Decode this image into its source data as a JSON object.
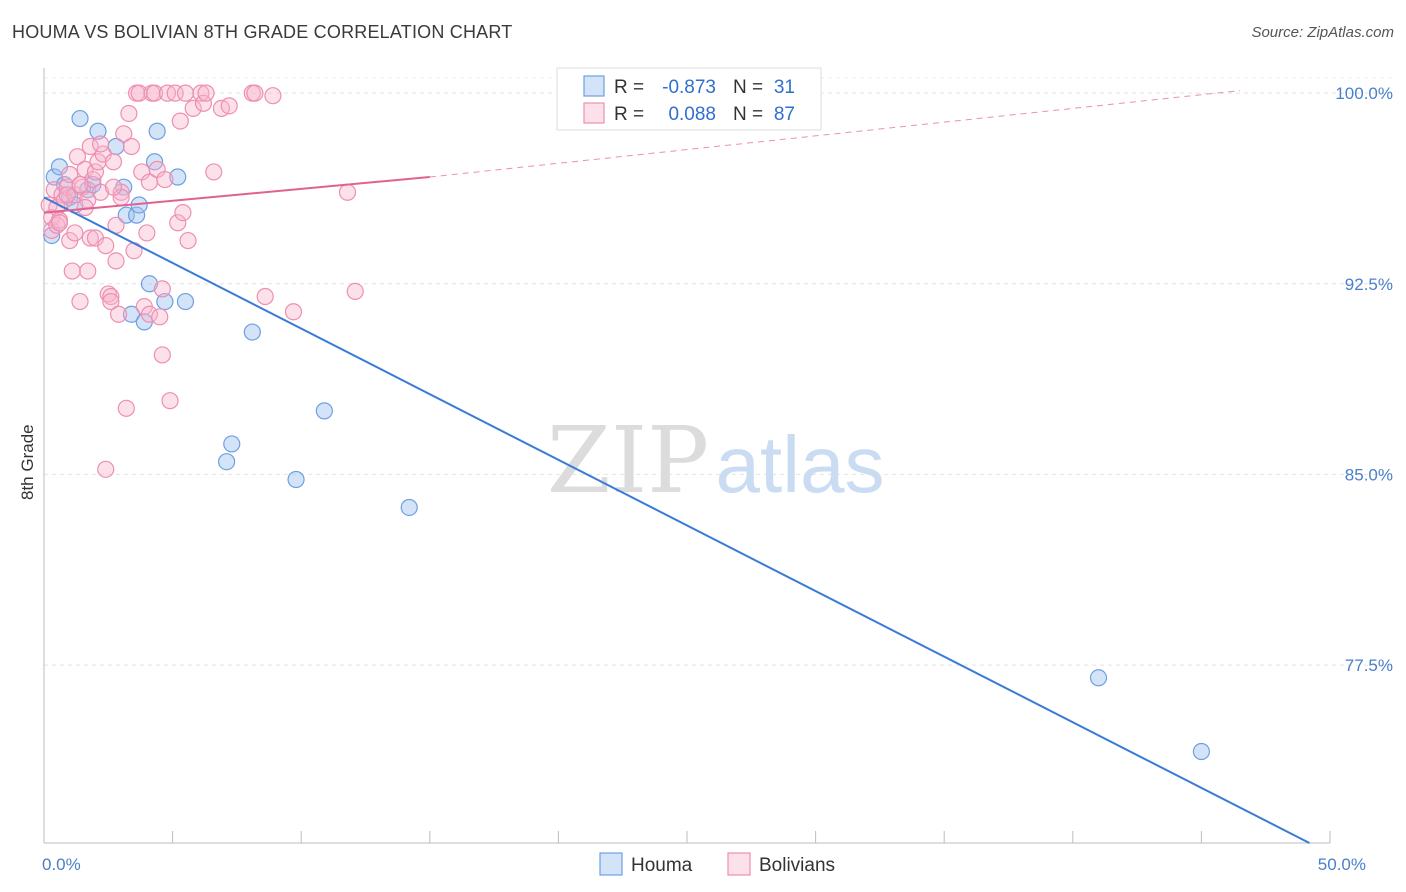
{
  "title": "HOUMA VS BOLIVIAN 8TH GRADE CORRELATION CHART",
  "source": "Source: ZipAtlas.com",
  "watermark": {
    "zip": "ZIP",
    "atlas": "atlas"
  },
  "chart_data": {
    "type": "scatter",
    "ylabel": "8th Grade",
    "xlim": [
      0,
      50
    ],
    "ylim": [
      70.5,
      101.5
    ],
    "x_tick_labels": [
      {
        "value": 0,
        "label": "0.0%"
      },
      {
        "value": 50,
        "label": "50.0%"
      }
    ],
    "y_ticks": [
      {
        "value": 100,
        "label": "100.0%"
      },
      {
        "value": 92.5,
        "label": "92.5%"
      },
      {
        "value": 85,
        "label": "85.0%"
      },
      {
        "value": 77.5,
        "label": "77.5%"
      }
    ],
    "grid": true,
    "legend_position": "top-center",
    "stats": [
      {
        "r_label": "R =",
        "r": "-0.873",
        "n_label": "N =",
        "n": "31"
      },
      {
        "r_label": "R =",
        "r": "0.088",
        "n_label": "N =",
        "n": "87"
      }
    ],
    "series": [
      {
        "name": "Houma",
        "color": "#6f9fe0",
        "fill": "rgba(160,195,240,0.45)",
        "line_color": "#3a7bd5",
        "trend": {
          "x0": 0,
          "y0": 95.9,
          "x1": 49.2,
          "y1": 70.5
        },
        "points": [
          [
            0.3,
            94.4
          ],
          [
            0.4,
            96.7
          ],
          [
            0.6,
            97.1
          ],
          [
            0.8,
            96.4
          ],
          [
            1.0,
            95.9
          ],
          [
            1.2,
            95.6
          ],
          [
            1.4,
            99.0
          ],
          [
            1.7,
            96.2
          ],
          [
            1.9,
            96.4
          ],
          [
            2.1,
            98.5
          ],
          [
            2.8,
            97.9
          ],
          [
            3.1,
            96.3
          ],
          [
            3.2,
            95.2
          ],
          [
            3.4,
            91.3
          ],
          [
            3.6,
            95.2
          ],
          [
            3.7,
            95.6
          ],
          [
            3.9,
            91.0
          ],
          [
            4.1,
            92.5
          ],
          [
            4.3,
            97.3
          ],
          [
            4.4,
            98.5
          ],
          [
            4.7,
            91.8
          ],
          [
            5.2,
            96.7
          ],
          [
            5.5,
            91.8
          ],
          [
            7.1,
            85.5
          ],
          [
            7.3,
            86.2
          ],
          [
            8.1,
            90.6
          ],
          [
            9.8,
            84.8
          ],
          [
            10.9,
            87.5
          ],
          [
            14.2,
            83.7
          ],
          [
            41.0,
            77.0
          ],
          [
            45.0,
            74.1
          ]
        ]
      },
      {
        "name": "Bolivians",
        "color": "#ee8fb0",
        "fill": "rgba(248,180,205,0.40)",
        "line_color": "#e0628f",
        "trend": {
          "x0": 0,
          "y0": 95.3,
          "x1": 15.0,
          "y1": 96.7
        },
        "trend_ext": {
          "x0": 15.0,
          "y0": 96.7,
          "x1": 46.5,
          "y1": 100.1
        },
        "points": [
          [
            0.2,
            95.6
          ],
          [
            0.3,
            95.1
          ],
          [
            0.3,
            94.6
          ],
          [
            0.4,
            96.2
          ],
          [
            0.5,
            95.5
          ],
          [
            0.5,
            94.8
          ],
          [
            0.6,
            95.0
          ],
          [
            0.7,
            96.0
          ],
          [
            0.8,
            95.8
          ],
          [
            0.9,
            96.3
          ],
          [
            1.0,
            94.2
          ],
          [
            1.0,
            96.8
          ],
          [
            1.1,
            93.0
          ],
          [
            1.2,
            94.5
          ],
          [
            1.2,
            96.0
          ],
          [
            1.3,
            97.5
          ],
          [
            1.4,
            91.8
          ],
          [
            1.5,
            96.3
          ],
          [
            1.6,
            97.0
          ],
          [
            1.7,
            93.0
          ],
          [
            1.7,
            95.8
          ],
          [
            1.8,
            97.9
          ],
          [
            1.8,
            94.3
          ],
          [
            1.9,
            96.6
          ],
          [
            2.0,
            96.9
          ],
          [
            2.0,
            94.3
          ],
          [
            2.1,
            97.3
          ],
          [
            2.2,
            96.1
          ],
          [
            2.3,
            97.6
          ],
          [
            2.4,
            94.0
          ],
          [
            2.4,
            85.2
          ],
          [
            2.5,
            92.1
          ],
          [
            2.6,
            92.0
          ],
          [
            2.6,
            91.8
          ],
          [
            2.7,
            97.3
          ],
          [
            2.8,
            93.4
          ],
          [
            2.8,
            94.8
          ],
          [
            2.9,
            91.3
          ],
          [
            3.0,
            96.1
          ],
          [
            3.1,
            98.4
          ],
          [
            3.2,
            87.6
          ],
          [
            3.3,
            99.2
          ],
          [
            3.4,
            97.9
          ],
          [
            3.5,
            93.8
          ],
          [
            3.6,
            100.0
          ],
          [
            3.7,
            100.0
          ],
          [
            3.8,
            96.9
          ],
          [
            3.9,
            91.6
          ],
          [
            4.0,
            94.5
          ],
          [
            4.1,
            91.3
          ],
          [
            4.1,
            96.5
          ],
          [
            4.2,
            100.0
          ],
          [
            4.3,
            100.0
          ],
          [
            4.4,
            97.0
          ],
          [
            4.5,
            91.2
          ],
          [
            4.6,
            92.3
          ],
          [
            4.6,
            89.7
          ],
          [
            4.7,
            96.6
          ],
          [
            4.8,
            100.0
          ],
          [
            4.9,
            87.9
          ],
          [
            5.1,
            100.0
          ],
          [
            5.2,
            94.9
          ],
          [
            5.3,
            98.9
          ],
          [
            5.4,
            95.3
          ],
          [
            5.5,
            100.0
          ],
          [
            5.6,
            94.2
          ],
          [
            5.8,
            99.4
          ],
          [
            6.1,
            100.0
          ],
          [
            6.2,
            99.6
          ],
          [
            6.3,
            100.0
          ],
          [
            6.6,
            96.9
          ],
          [
            6.9,
            99.4
          ],
          [
            7.2,
            99.5
          ],
          [
            8.1,
            100.0
          ],
          [
            8.2,
            100.0
          ],
          [
            8.6,
            92.0
          ],
          [
            8.9,
            99.9
          ],
          [
            9.7,
            91.4
          ],
          [
            11.8,
            96.1
          ],
          [
            12.1,
            92.2
          ],
          [
            0.9,
            96.0
          ],
          [
            1.6,
            95.5
          ],
          [
            2.2,
            98.0
          ],
          [
            3.0,
            95.9
          ],
          [
            0.6,
            94.9
          ],
          [
            1.4,
            96.4
          ],
          [
            2.7,
            96.3
          ]
        ]
      }
    ]
  }
}
